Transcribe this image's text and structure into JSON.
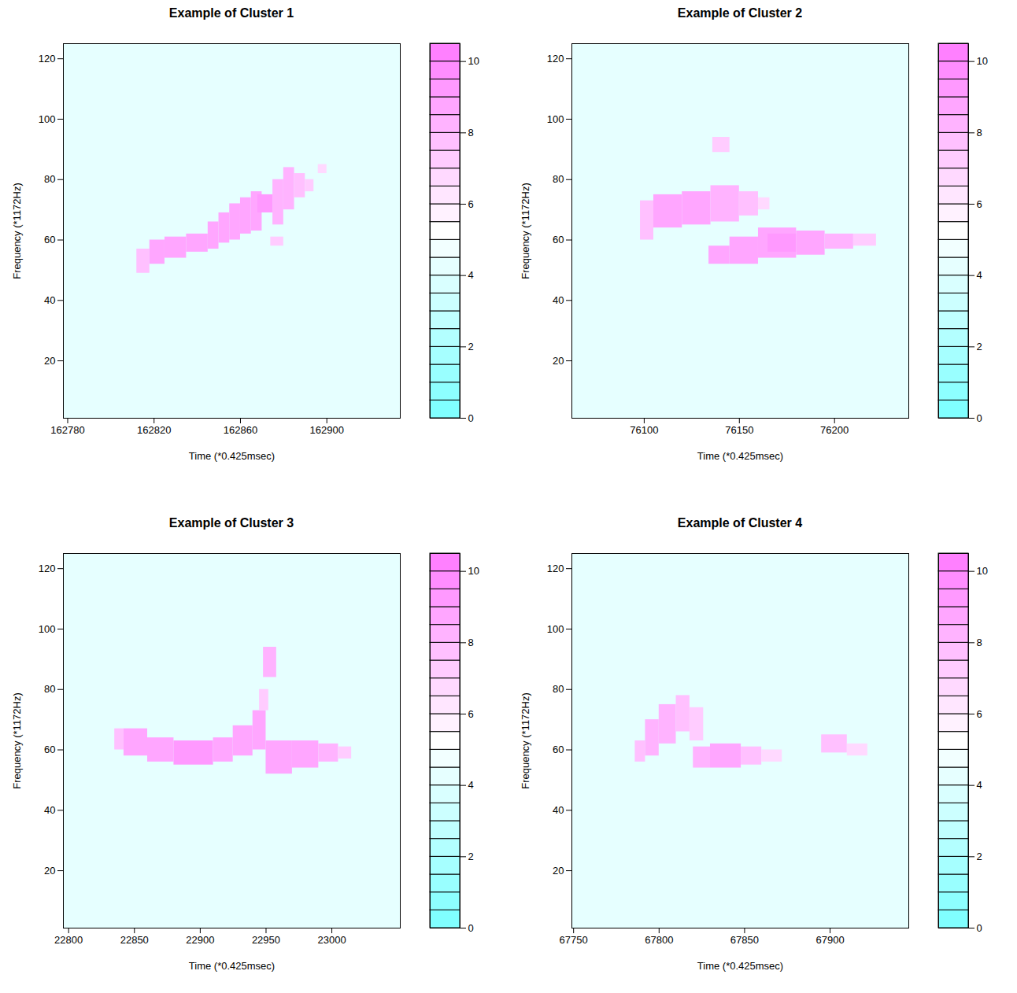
{
  "chart_data": [
    {
      "type": "heatmap",
      "title": "Example of Cluster 1",
      "x_label": "Time (*0.425msec)",
      "y_label": "Frequency (*1172Hz)",
      "xlim": [
        162778,
        162934
      ],
      "xticks": [
        162780,
        162820,
        162860,
        162900
      ],
      "ylim": [
        1,
        125
      ],
      "yticks": [
        20,
        40,
        60,
        80,
        100,
        120
      ],
      "background": 4,
      "cells": [
        [
          162812,
          162818,
          49,
          57,
          7.5
        ],
        [
          162818,
          162825,
          52,
          60,
          8.5
        ],
        [
          162825,
          162835,
          54,
          61,
          8.5
        ],
        [
          162835,
          162845,
          56,
          62,
          8.5
        ],
        [
          162845,
          162850,
          57,
          66,
          8.5
        ],
        [
          162850,
          162855,
          59,
          69,
          8.5
        ],
        [
          162855,
          162860,
          60,
          72,
          8.5
        ],
        [
          162860,
          162865,
          62,
          74,
          8.5
        ],
        [
          162865,
          162870,
          63,
          76,
          8.5
        ],
        [
          162875,
          162880,
          65,
          80,
          8
        ],
        [
          162880,
          162885,
          70,
          84,
          8
        ],
        [
          162885,
          162890,
          74,
          82,
          7.5
        ],
        [
          162890,
          162894,
          76,
          80,
          7
        ],
        [
          162896,
          162900,
          82,
          85,
          6.5
        ],
        [
          162874,
          162880,
          58,
          61,
          7
        ],
        [
          162868,
          162875,
          69,
          75,
          9
        ]
      ],
      "colorbar": {
        "lim": [
          0,
          10.5
        ],
        "ticks": [
          0,
          2,
          4,
          6,
          8,
          10
        ],
        "levels": [
          0,
          0.5,
          1,
          1.5,
          2,
          2.5,
          3,
          3.5,
          4,
          4.5,
          5,
          5.5,
          6,
          6.5,
          7,
          7.5,
          8,
          8.5,
          9,
          9.5,
          10,
          10.5
        ],
        "colors": [
          "#80ffff",
          "#ffffff",
          "#ff80ff"
        ]
      }
    },
    {
      "type": "heatmap",
      "title": "Example of Cluster 2",
      "x_label": "Time (*0.425msec)",
      "y_label": "Frequency (*1172Hz)",
      "xlim": [
        76062,
        76239
      ],
      "xticks": [
        76100,
        76150,
        76200
      ],
      "ylim": [
        1,
        125
      ],
      "yticks": [
        20,
        40,
        60,
        80,
        100,
        120
      ],
      "background": 4,
      "cells": [
        [
          76098,
          76105,
          60,
          73,
          7.5
        ],
        [
          76105,
          76120,
          64,
          75,
          8.5
        ],
        [
          76120,
          76135,
          65,
          76,
          8.5
        ],
        [
          76135,
          76150,
          66,
          78,
          8
        ],
        [
          76150,
          76160,
          68,
          76,
          7.5
        ],
        [
          76160,
          76166,
          70,
          74,
          6.5
        ],
        [
          76136,
          76145,
          89,
          94,
          7
        ],
        [
          76134,
          76145,
          52,
          58,
          8.5
        ],
        [
          76145,
          76160,
          52,
          61,
          8.5
        ],
        [
          76160,
          76180,
          54,
          64,
          8.5
        ],
        [
          76165,
          76180,
          56,
          62,
          9
        ],
        [
          76180,
          76195,
          55,
          63,
          8.5
        ],
        [
          76195,
          76210,
          57,
          62,
          8
        ],
        [
          76210,
          76222,
          58,
          62,
          7
        ]
      ],
      "colorbar": {
        "lim": [
          0,
          10.5
        ],
        "ticks": [
          0,
          2,
          4,
          6,
          8,
          10
        ],
        "levels": [
          0,
          0.5,
          1,
          1.5,
          2,
          2.5,
          3,
          3.5,
          4,
          4.5,
          5,
          5.5,
          6,
          6.5,
          7,
          7.5,
          8,
          8.5,
          9,
          9.5,
          10,
          10.5
        ],
        "colors": [
          "#80ffff",
          "#ffffff",
          "#ff80ff"
        ]
      }
    },
    {
      "type": "heatmap",
      "title": "Example of Cluster 3",
      "x_label": "Time (*0.425msec)",
      "y_label": "Frequency (*1172Hz)",
      "xlim": [
        22796,
        23052
      ],
      "xticks": [
        22800,
        22850,
        22900,
        22950,
        23000
      ],
      "ylim": [
        1,
        125
      ],
      "yticks": [
        20,
        40,
        60,
        80,
        100,
        120
      ],
      "background": 4,
      "cells": [
        [
          22835,
          22842,
          60,
          67,
          7.5
        ],
        [
          22842,
          22860,
          58,
          67,
          8.5
        ],
        [
          22860,
          22880,
          56,
          64,
          8.5
        ],
        [
          22880,
          22910,
          55,
          63,
          9
        ],
        [
          22910,
          22925,
          56,
          64,
          8.5
        ],
        [
          22925,
          22940,
          58,
          68,
          8.5
        ],
        [
          22940,
          22950,
          60,
          73,
          8.5
        ],
        [
          22945,
          22952,
          73,
          80,
          7
        ],
        [
          22948,
          22958,
          84,
          94,
          8
        ],
        [
          22950,
          22970,
          52,
          63,
          8.5
        ],
        [
          22970,
          22990,
          54,
          63,
          8.5
        ],
        [
          22990,
          23005,
          56,
          62,
          8
        ],
        [
          23005,
          23015,
          57,
          61,
          7
        ]
      ],
      "colorbar": {
        "lim": [
          0,
          10.5
        ],
        "ticks": [
          0,
          2,
          4,
          6,
          8,
          10
        ],
        "levels": [
          0,
          0.5,
          1,
          1.5,
          2,
          2.5,
          3,
          3.5,
          4,
          4.5,
          5,
          5.5,
          6,
          6.5,
          7,
          7.5,
          8,
          8.5,
          9,
          9.5,
          10,
          10.5
        ],
        "colors": [
          "#80ffff",
          "#ffffff",
          "#ff80ff"
        ]
      }
    },
    {
      "type": "heatmap",
      "title": "Example of Cluster 4",
      "x_label": "Time (*0.425msec)",
      "y_label": "Frequency (*1172Hz)",
      "xlim": [
        67749,
        67946
      ],
      "xticks": [
        67750,
        67800,
        67850,
        67900
      ],
      "ylim": [
        1,
        125
      ],
      "yticks": [
        20,
        40,
        60,
        80,
        100,
        120
      ],
      "background": 4,
      "cells": [
        [
          67786,
          67792,
          56,
          63,
          7.5
        ],
        [
          67792,
          67800,
          58,
          70,
          8
        ],
        [
          67800,
          67810,
          62,
          75,
          8
        ],
        [
          67810,
          67818,
          66,
          78,
          7.5
        ],
        [
          67818,
          67826,
          63,
          74,
          7
        ],
        [
          67820,
          67830,
          54,
          61,
          8
        ],
        [
          67830,
          67848,
          54,
          62,
          8.5
        ],
        [
          67848,
          67860,
          55,
          61,
          7.5
        ],
        [
          67860,
          67872,
          56,
          60,
          6.5
        ],
        [
          67895,
          67910,
          59,
          65,
          7.5
        ],
        [
          67910,
          67922,
          58,
          62,
          6.5
        ]
      ],
      "colorbar": {
        "lim": [
          0,
          10.5
        ],
        "ticks": [
          0,
          2,
          4,
          6,
          8,
          10
        ],
        "levels": [
          0,
          0.5,
          1,
          1.5,
          2,
          2.5,
          3,
          3.5,
          4,
          4.5,
          5,
          5.5,
          6,
          6.5,
          7,
          7.5,
          8,
          8.5,
          9,
          9.5,
          10,
          10.5
        ],
        "colors": [
          "#80ffff",
          "#ffffff",
          "#ff80ff"
        ]
      }
    }
  ]
}
